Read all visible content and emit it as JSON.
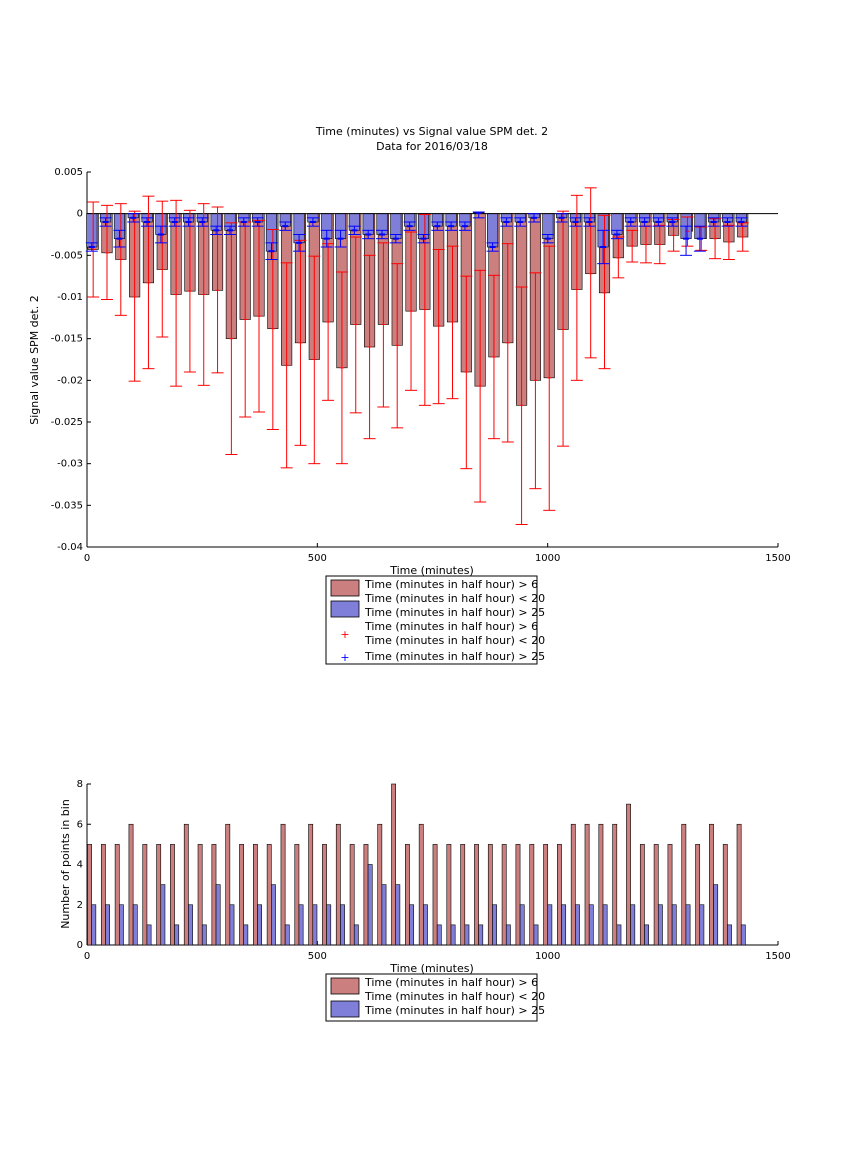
{
  "title_line1": "Time (minutes) vs Signal value SPM det. 2",
  "title_line2": "Data for 2016/03/18",
  "colors": {
    "red_bar": "#cc7f7f",
    "blue_bar": "#7f7fd9",
    "red_err": "#ff0000",
    "blue_err": "#0000ff"
  },
  "chart_data": [
    {
      "type": "bar",
      "title": "Time (minutes) vs Signal value SPM det. 2",
      "subtitle": "Data for 2016/03/18",
      "xlabel": "Time (minutes)",
      "ylabel": "Signal value SPM det. 2",
      "xlim": [
        0,
        1500
      ],
      "ylim": [
        -0.04,
        0.005
      ],
      "xticks": [
        "0",
        "500",
        "1000",
        "1500"
      ],
      "yticks": [
        "0.005",
        "0",
        "-0.005",
        "-0.01",
        "-0.015",
        "-0.02",
        "-0.025",
        "-0.03",
        "-0.035",
        "-0.04"
      ],
      "x": [
        0,
        30,
        60,
        90,
        120,
        150,
        180,
        210,
        240,
        270,
        300,
        330,
        360,
        390,
        420,
        450,
        480,
        510,
        540,
        570,
        600,
        630,
        660,
        690,
        720,
        750,
        780,
        810,
        840,
        870,
        900,
        930,
        960,
        990,
        1020,
        1050,
        1080,
        1110,
        1140,
        1170,
        1200,
        1230,
        1260,
        1290,
        1320,
        1350,
        1380,
        1410
      ],
      "legend": [
        "Time (minutes in half hour) > 6\nTime (minutes in half hour) < 20",
        "Time (minutes in half hour) > 25",
        "Time (minutes in half hour) > 6\nTime (minutes in half hour) < 20",
        "Time (minutes in half hour) > 25"
      ],
      "series": [
        {
          "legend_index": 0,
          "values": [
            -0.0043,
            -0.0047,
            -0.0055,
            -0.01,
            -0.0083,
            -0.0067,
            -0.0097,
            -0.0093,
            -0.0097,
            -0.0092,
            -0.015,
            -0.0127,
            -0.0123,
            -0.0138,
            -0.0182,
            -0.0155,
            -0.0175,
            -0.013,
            -0.0185,
            -0.0133,
            -0.016,
            -0.0133,
            -0.0158,
            -0.0117,
            -0.0115,
            -0.0135,
            -0.013,
            -0.019,
            -0.0207,
            -0.0172,
            -0.0155,
            -0.023,
            -0.02,
            -0.0197,
            -0.0139,
            -0.0091,
            -0.0072,
            -0.0095,
            -0.0053,
            -0.0039,
            -0.0037,
            -0.0037,
            -0.0026,
            -0.0021,
            -0.003,
            -0.003,
            -0.0034,
            -0.0028
          ],
          "err_low": [
            -0.01,
            -0.0103,
            -0.0122,
            -0.0201,
            -0.0186,
            -0.0148,
            -0.0207,
            -0.019,
            -0.0206,
            -0.0191,
            -0.0289,
            -0.0244,
            -0.0238,
            -0.0259,
            -0.0305,
            -0.0278,
            -0.03,
            -0.0224,
            -0.03,
            -0.0239,
            -0.027,
            -0.0232,
            -0.0257,
            -0.0212,
            -0.023,
            -0.0228,
            -0.0222,
            -0.0306,
            -0.0346,
            -0.027,
            -0.0274,
            -0.0373,
            -0.033,
            -0.0356,
            -0.0279,
            -0.02,
            -0.0173,
            -0.0186,
            -0.0077,
            -0.0058,
            -0.0059,
            -0.006,
            -0.0045,
            -0.0039,
            -0.0044,
            -0.0054,
            -0.0055,
            -0.0045
          ],
          "err_high": [
            0.0014,
            0.001,
            0.0012,
            0.0003,
            0.0021,
            0.0015,
            0.0016,
            0.0004,
            0.0012,
            0.0008,
            -0.0011,
            -0.001,
            -0.0008,
            -0.0019,
            -0.0059,
            -0.0032,
            -0.0051,
            -0.0036,
            -0.007,
            -0.0028,
            -0.005,
            -0.0035,
            -0.006,
            -0.0022,
            -0.0001,
            -0.0043,
            -0.0039,
            -0.0075,
            -0.0068,
            -0.0074,
            -0.0036,
            -0.0088,
            -0.0071,
            -0.0039,
            0.0003,
            0.0022,
            0.0031,
            -0.0002,
            -0.0028,
            -0.002,
            -0.0015,
            -0.0014,
            -0.0007,
            -0.0004,
            -0.0016,
            -0.0006,
            -0.0014,
            -0.0011
          ]
        },
        {
          "legend_index": 1,
          "values": [
            -0.004,
            -0.001,
            -0.003,
            -0.0005,
            -0.001,
            -0.0025,
            -0.001,
            -0.001,
            -0.001,
            -0.002,
            -0.002,
            -0.001,
            -0.001,
            -0.0045,
            -0.0015,
            -0.0035,
            -0.001,
            -0.003,
            -0.003,
            -0.002,
            -0.0025,
            -0.0025,
            -0.003,
            -0.0015,
            -0.003,
            -0.0015,
            -0.0015,
            -0.0015,
            0.0001,
            -0.004,
            -0.001,
            -0.001,
            -0.0005,
            -0.003,
            -0.0005,
            -0.001,
            -0.001,
            -0.004,
            -0.0025,
            -0.001,
            -0.001,
            -0.001,
            -0.001,
            -0.003,
            -0.003,
            -0.001,
            -0.001,
            -0.001
          ],
          "err_low": [
            -0.0045,
            -0.0015,
            -0.004,
            -0.001,
            -0.0015,
            -0.0035,
            -0.0015,
            -0.0015,
            -0.0015,
            -0.0025,
            -0.0025,
            -0.0015,
            -0.0015,
            -0.0055,
            -0.002,
            -0.0045,
            -0.0015,
            -0.004,
            -0.004,
            -0.0025,
            -0.003,
            -0.003,
            -0.0035,
            -0.002,
            -0.0035,
            -0.002,
            -0.002,
            -0.002,
            -0.0005,
            -0.0045,
            -0.0015,
            -0.0015,
            -0.001,
            -0.0035,
            -0.001,
            -0.0015,
            -0.0015,
            -0.006,
            -0.003,
            -0.0015,
            -0.0015,
            -0.0015,
            -0.0015,
            -0.005,
            -0.0045,
            -0.0015,
            -0.0015,
            -0.0015
          ],
          "err_high": [
            -0.0035,
            -0.0005,
            -0.002,
            0.0,
            -0.0005,
            -0.0015,
            -0.0005,
            -0.0005,
            -0.0005,
            -0.0015,
            -0.0015,
            -0.0005,
            -0.0005,
            -0.0035,
            -0.001,
            -0.0025,
            -0.0005,
            -0.002,
            -0.002,
            -0.0015,
            -0.002,
            -0.002,
            -0.0025,
            -0.001,
            -0.0025,
            -0.001,
            -0.001,
            -0.001,
            0.0002,
            -0.0035,
            -0.0005,
            -0.0005,
            0.0,
            -0.0025,
            0.0,
            -0.0005,
            -0.0005,
            -0.002,
            -0.002,
            -0.0005,
            -0.0005,
            -0.0005,
            -0.0005,
            -0.0015,
            -0.0015,
            -0.0005,
            -0.0005,
            -0.0005
          ]
        }
      ]
    },
    {
      "type": "bar",
      "xlabel": "Time (minutes)",
      "ylabel": "Number of points in bin",
      "xlim": [
        0,
        1500
      ],
      "ylim": [
        0,
        8
      ],
      "xticks": [
        "0",
        "500",
        "1000",
        "1500"
      ],
      "yticks": [
        "8",
        "6",
        "4",
        "2",
        "0"
      ],
      "x": [
        0,
        30,
        60,
        90,
        120,
        150,
        180,
        210,
        240,
        270,
        300,
        330,
        360,
        390,
        420,
        450,
        480,
        510,
        540,
        570,
        600,
        630,
        660,
        690,
        720,
        750,
        780,
        810,
        840,
        870,
        900,
        930,
        960,
        990,
        1020,
        1050,
        1080,
        1110,
        1140,
        1170,
        1200,
        1230,
        1260,
        1290,
        1320,
        1350,
        1380,
        1410
      ],
      "legend": [
        "Time (minutes in half hour) > 6\nTime (minutes in half hour) < 20",
        "Time (minutes in half hour) > 25"
      ],
      "series": [
        {
          "legend_index": 0,
          "values": [
            5,
            5,
            5,
            6,
            5,
            5,
            5,
            6,
            5,
            5,
            6,
            5,
            5,
            5,
            6,
            5,
            6,
            5,
            6,
            5,
            5,
            6,
            8,
            5,
            6,
            5,
            5,
            5,
            5,
            5,
            5,
            5,
            5,
            5,
            5,
            6,
            6,
            6,
            6,
            7,
            5,
            5,
            5,
            6,
            5,
            6,
            5,
            6
          ]
        },
        {
          "legend_index": 1,
          "values": [
            2,
            2,
            2,
            2,
            1,
            3,
            1,
            2,
            1,
            3,
            2,
            1,
            2,
            3,
            1,
            2,
            2,
            2,
            2,
            1,
            4,
            3,
            3,
            2,
            2,
            1,
            1,
            1,
            1,
            2,
            1,
            2,
            1,
            2,
            2,
            2,
            2,
            2,
            1,
            2,
            1,
            2,
            2,
            2,
            2,
            3,
            1,
            1
          ]
        }
      ]
    }
  ]
}
